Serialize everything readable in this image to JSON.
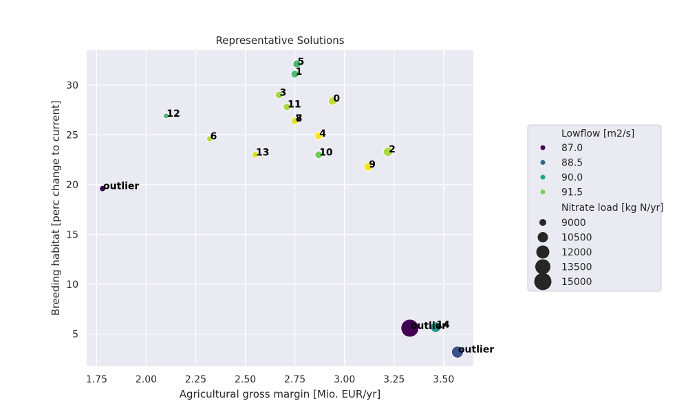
{
  "chart_data": {
    "type": "scatter",
    "title": "Representative Solutions",
    "xlabel": "Agricultural gross margin [Mio. EUR/yr]",
    "ylabel": "Breeding habitat [perc change to current]",
    "xlim": [
      1.7,
      3.65
    ],
    "ylim": [
      1.8,
      33.5
    ],
    "xticks": [
      1.75,
      2.0,
      2.25,
      2.5,
      2.75,
      3.0,
      3.25,
      3.5
    ],
    "xtick_labels": [
      "1.75",
      "2.00",
      "2.25",
      "2.50",
      "2.75",
      "3.00",
      "3.25",
      "3.50"
    ],
    "yticks": [
      5,
      10,
      15,
      20,
      25,
      30
    ],
    "ytick_labels": [
      "5",
      "10",
      "15",
      "20",
      "25",
      "30"
    ],
    "grid": true,
    "background_color": "#eaeaf2",
    "points": [
      {
        "label": "5",
        "x": 2.76,
        "y": 32.1,
        "lowflow": 90.6,
        "nitrate": 9900
      },
      {
        "label": "1",
        "x": 2.75,
        "y": 31.1,
        "lowflow": 90.7,
        "nitrate": 9800
      },
      {
        "label": "3",
        "x": 2.67,
        "y": 29.0,
        "lowflow": 91.7,
        "nitrate": 9600
      },
      {
        "label": "0",
        "x": 2.94,
        "y": 28.4,
        "lowflow": 92.0,
        "nitrate": 10200
      },
      {
        "label": "11",
        "x": 2.71,
        "y": 27.8,
        "lowflow": 91.8,
        "nitrate": 9600
      },
      {
        "label": "12",
        "x": 2.1,
        "y": 26.9,
        "lowflow": 90.8,
        "nitrate": 8600
      },
      {
        "label": "7",
        "x": 2.75,
        "y": 26.4,
        "lowflow": 92.2,
        "nitrate": 9600
      },
      {
        "label": "8",
        "x": 2.75,
        "y": 26.4,
        "lowflow": 92.2,
        "nitrate": 9600
      },
      {
        "label": "4",
        "x": 2.87,
        "y": 24.9,
        "lowflow": 92.5,
        "nitrate": 9900
      },
      {
        "label": "6",
        "x": 2.32,
        "y": 24.6,
        "lowflow": 91.9,
        "nitrate": 8900
      },
      {
        "label": "2",
        "x": 3.22,
        "y": 23.3,
        "lowflow": 91.8,
        "nitrate": 10600
      },
      {
        "label": "13",
        "x": 2.55,
        "y": 23.0,
        "lowflow": 92.2,
        "nitrate": 9100
      },
      {
        "label": "10",
        "x": 2.87,
        "y": 23.0,
        "lowflow": 91.3,
        "nitrate": 9700
      },
      {
        "label": "9",
        "x": 3.12,
        "y": 21.8,
        "lowflow": 92.4,
        "nitrate": 10300
      },
      {
        "label": "outlier",
        "x": 1.78,
        "y": 19.6,
        "lowflow": 87.0,
        "nitrate": 8900
      },
      {
        "label": "outlier",
        "x": 3.33,
        "y": 5.6,
        "lowflow": 86.9,
        "nitrate": 15200
      },
      {
        "label": "14",
        "x": 3.46,
        "y": 5.7,
        "lowflow": 89.8,
        "nitrate": 11300
      },
      {
        "label": "outlier",
        "x": 3.57,
        "y": 3.2,
        "lowflow": 88.3,
        "nitrate": 12000
      }
    ],
    "legend": {
      "placement": "right",
      "hue_title": "Lowflow [m2/s]",
      "hue_entries": [
        {
          "label": "87.0",
          "color": "#440154"
        },
        {
          "label": "88.5",
          "color": "#31688e"
        },
        {
          "label": "90.0",
          "color": "#21a685"
        },
        {
          "label": "91.5",
          "color": "#7ad151"
        }
      ],
      "size_title": "Nitrate load [kg N/yr]",
      "size_entries": [
        {
          "label": "9000",
          "value": 9000
        },
        {
          "label": "10500",
          "value": 10500
        },
        {
          "label": "12000",
          "value": 12000
        },
        {
          "label": "13500",
          "value": 13500
        },
        {
          "label": "15000",
          "value": 15000
        }
      ]
    },
    "colormap": "viridis",
    "hue_range": [
      86.9,
      92.5
    ],
    "size_range": [
      8600,
      15200
    ]
  }
}
